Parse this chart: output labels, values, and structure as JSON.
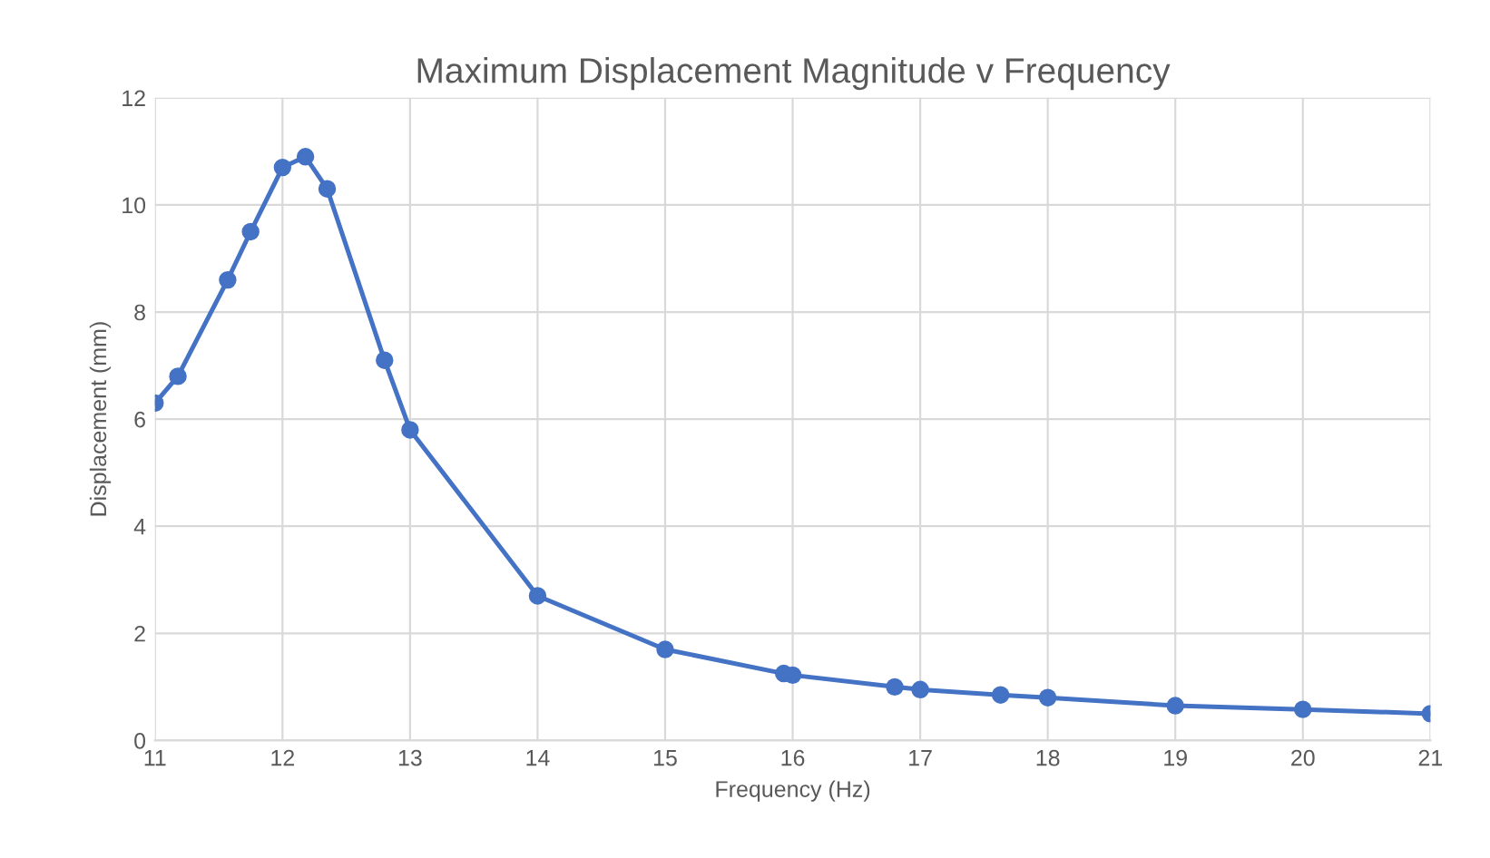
{
  "chart_data": {
    "type": "line",
    "title": "Maximum Displacement Magnitude v Frequency",
    "xlabel": "Frequency (Hz)",
    "ylabel": "Displacement (mm)",
    "series": [
      {
        "color": "#4472c4",
        "x": [
          11,
          11.18,
          11.57,
          11.75,
          12.0,
          12.18,
          12.35,
          12.8,
          13,
          14,
          15,
          15.93,
          16.0,
          16.8,
          17,
          17.63,
          18,
          19,
          20,
          21
        ],
        "values": [
          6.3,
          6.8,
          8.6,
          9.5,
          10.7,
          10.9,
          10.3,
          7.1,
          5.8,
          2.7,
          1.7,
          1.25,
          1.22,
          1.0,
          0.95,
          0.85,
          0.8,
          0.65,
          0.58,
          0.5
        ]
      }
    ],
    "xlim": [
      11,
      21
    ],
    "xticks": [
      11,
      12,
      13,
      14,
      15,
      16,
      17,
      18,
      19,
      20,
      21
    ],
    "ylim": [
      0,
      12
    ],
    "yticks": [
      0,
      2,
      4,
      6,
      8,
      10,
      12
    ],
    "grid": true,
    "marker": "circle",
    "line_style": "solid"
  }
}
